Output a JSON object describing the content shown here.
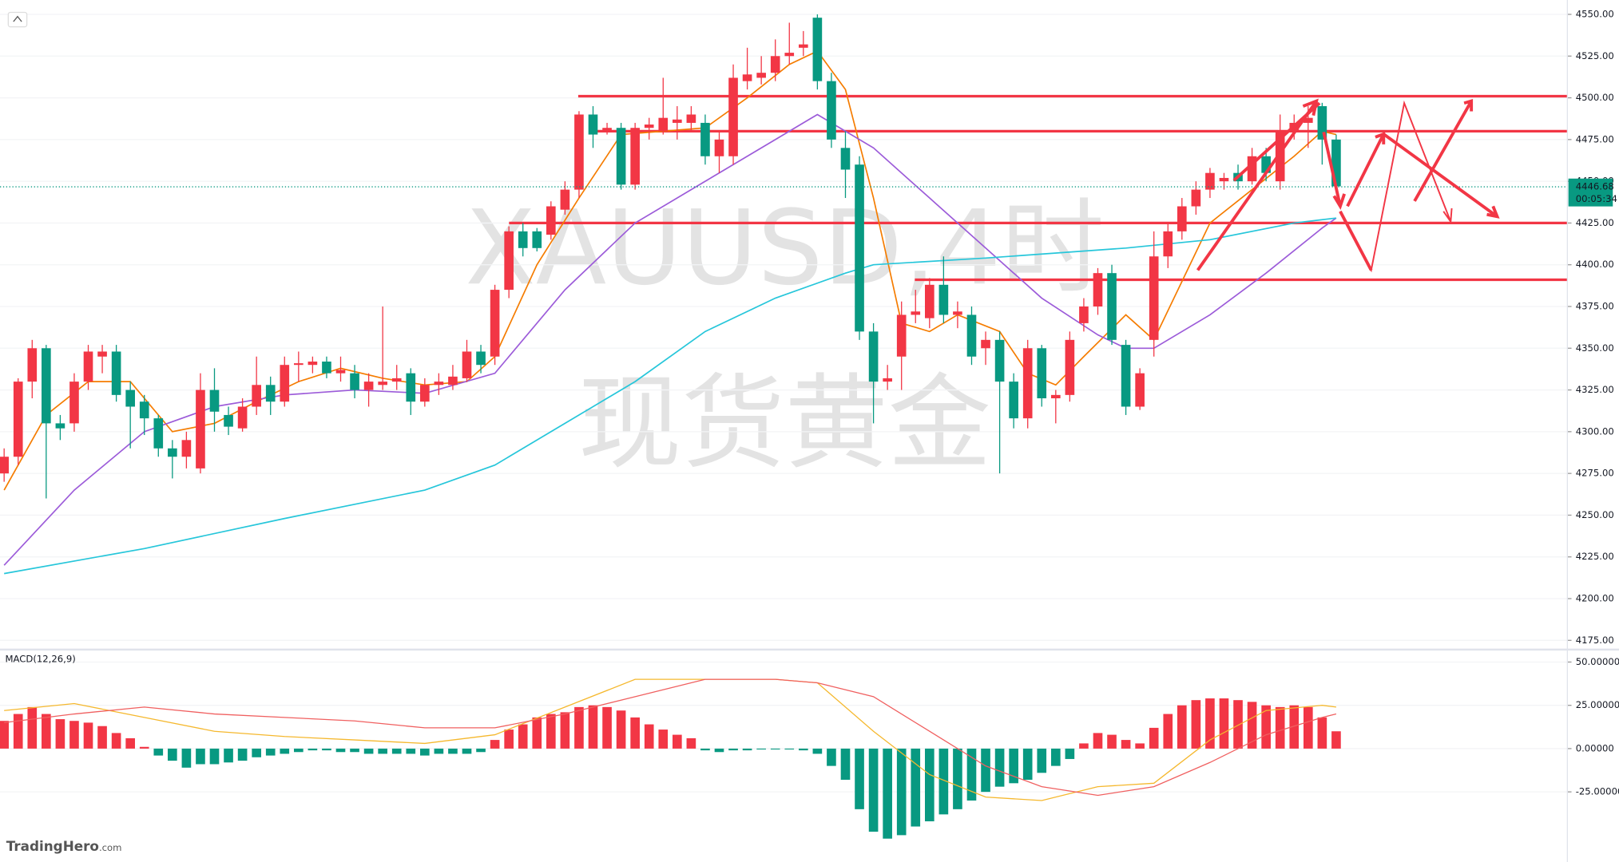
{
  "chart_data": [
    {
      "type": "candlestick",
      "title": "XAUUSD,4时",
      "subtitle": "现货黄金",
      "up_color": "#f23645",
      "down_color": "#089981",
      "ylim": [
        4170.7,
        4558.6
      ],
      "yticks": [
        {
          "value": 4175,
          "label": "4175.00"
        },
        {
          "value": 4200,
          "label": "4200.00"
        },
        {
          "value": 4225,
          "label": "4225.00"
        },
        {
          "value": 4250,
          "label": "4250.00"
        },
        {
          "value": 4275,
          "label": "4275.00"
        },
        {
          "value": 4300,
          "label": "4300.00"
        },
        {
          "value": 4325,
          "label": "4325.00"
        },
        {
          "value": 4350,
          "label": "4350.00"
        },
        {
          "value": 4375,
          "label": "4375.00"
        },
        {
          "value": 4400,
          "label": "4400.00"
        },
        {
          "value": 4425,
          "label": "4425.00"
        },
        {
          "value": 4450,
          "label": "4450.00"
        },
        {
          "value": 4475,
          "label": "4475.00"
        },
        {
          "value": 4500,
          "label": "4500.00"
        },
        {
          "value": 4525,
          "label": "4525.00"
        },
        {
          "value": 4550,
          "label": "4550.00"
        }
      ],
      "ohlc": [
        [
          4275,
          4290,
          4270,
          4285
        ],
        [
          4285,
          4332,
          4280,
          4330
        ],
        [
          4330,
          4355,
          4320,
          4350
        ],
        [
          4350,
          4352,
          4260,
          4305
        ],
        [
          4305,
          4310,
          4295,
          4302
        ],
        [
          4305,
          4335,
          4300,
          4330
        ],
        [
          4330,
          4352,
          4325,
          4348
        ],
        [
          4345,
          4352,
          4335,
          4348
        ],
        [
          4348,
          4352,
          4318,
          4322
        ],
        [
          4325,
          4330,
          4290,
          4315
        ],
        [
          4318,
          4322,
          4298,
          4308
        ],
        [
          4308,
          4310,
          4285,
          4290
        ],
        [
          4290,
          4295,
          4272,
          4285
        ],
        [
          4285,
          4300,
          4278,
          4295
        ],
        [
          4278,
          4335,
          4275,
          4325
        ],
        [
          4325,
          4338,
          4300,
          4312
        ],
        [
          4310,
          4315,
          4298,
          4303
        ],
        [
          4302,
          4320,
          4300,
          4315
        ],
        [
          4315,
          4345,
          4310,
          4328
        ],
        [
          4328,
          4333,
          4310,
          4318
        ],
        [
          4318,
          4345,
          4315,
          4340
        ],
        [
          4340,
          4348,
          4330,
          4341
        ],
        [
          4340,
          4345,
          4335,
          4342
        ],
        [
          4342,
          4345,
          4332,
          4335
        ],
        [
          4335,
          4345,
          4330,
          4337
        ],
        [
          4335,
          4340,
          4320,
          4325
        ],
        [
          4325,
          4335,
          4315,
          4330
        ],
        [
          4328,
          4375,
          4325,
          4330
        ],
        [
          4330,
          4340,
          4325,
          4332
        ],
        [
          4335,
          4338,
          4310,
          4318
        ],
        [
          4318,
          4332,
          4315,
          4328
        ],
        [
          4328,
          4335,
          4322,
          4330
        ],
        [
          4328,
          4340,
          4325,
          4333
        ],
        [
          4332,
          4355,
          4330,
          4348
        ],
        [
          4348,
          4352,
          4335,
          4340
        ],
        [
          4345,
          4388,
          4340,
          4385
        ],
        [
          4385,
          4423,
          4380,
          4420
        ],
        [
          4420,
          4425,
          4405,
          4410
        ],
        [
          4420,
          4422,
          4408,
          4410
        ],
        [
          4418,
          4438,
          4415,
          4435
        ],
        [
          4433,
          4450,
          4430,
          4445
        ],
        [
          4445,
          4492,
          4440,
          4490
        ],
        [
          4490,
          4495,
          4470,
          4478
        ],
        [
          4480,
          4485,
          4478,
          4482
        ],
        [
          4482,
          4485,
          4445,
          4448
        ],
        [
          4448,
          4485,
          4445,
          4482
        ],
        [
          4482,
          4488,
          4475,
          4484
        ],
        [
          4480,
          4512,
          4478,
          4488
        ],
        [
          4485,
          4495,
          4475,
          4487
        ],
        [
          4485,
          4495,
          4480,
          4490
        ],
        [
          4485,
          4490,
          4460,
          4465
        ],
        [
          4465,
          4480,
          4455,
          4475
        ],
        [
          4465,
          4520,
          4460,
          4512
        ],
        [
          4510,
          4530,
          4505,
          4514
        ],
        [
          4512,
          4525,
          4508,
          4515
        ],
        [
          4515,
          4535,
          4510,
          4525
        ],
        [
          4525,
          4545,
          4520,
          4527
        ],
        [
          4530,
          4540,
          4525,
          4532
        ],
        [
          4548,
          4550,
          4505,
          4510
        ],
        [
          4510,
          4515,
          4470,
          4475
        ],
        [
          4470,
          4480,
          4440,
          4457
        ],
        [
          4460,
          4465,
          4355,
          4360
        ],
        [
          4360,
          4365,
          4305,
          4330
        ],
        [
          4330,
          4340,
          4325,
          4332
        ],
        [
          4345,
          4378,
          4325,
          4370
        ],
        [
          4370,
          4385,
          4365,
          4372
        ],
        [
          4368,
          4392,
          4362,
          4388
        ],
        [
          4388,
          4405,
          4365,
          4370
        ],
        [
          4370,
          4378,
          4362,
          4372
        ],
        [
          4370,
          4375,
          4340,
          4345
        ],
        [
          4350,
          4360,
          4340,
          4355
        ],
        [
          4355,
          4360,
          4275,
          4330
        ],
        [
          4330,
          4335,
          4302,
          4308
        ],
        [
          4308,
          4355,
          4302,
          4350
        ],
        [
          4350,
          4352,
          4315,
          4320
        ],
        [
          4320,
          4325,
          4305,
          4322
        ],
        [
          4322,
          4360,
          4318,
          4355
        ],
        [
          4365,
          4380,
          4360,
          4375
        ],
        [
          4375,
          4398,
          4370,
          4395
        ],
        [
          4395,
          4400,
          4352,
          4355
        ],
        [
          4352,
          4355,
          4310,
          4315
        ],
        [
          4315,
          4338,
          4313,
          4335
        ],
        [
          4355,
          4420,
          4345,
          4405
        ],
        [
          4405,
          4425,
          4398,
          4420
        ],
        [
          4420,
          4440,
          4415,
          4435
        ],
        [
          4435,
          4450,
          4430,
          4445
        ],
        [
          4445,
          4458,
          4440,
          4455
        ],
        [
          4450,
          4455,
          4445,
          4452
        ],
        [
          4455,
          4460,
          4445,
          4450
        ],
        [
          4450,
          4470,
          4448,
          4465
        ],
        [
          4465,
          4470,
          4450,
          4455
        ],
        [
          4450,
          4490,
          4445,
          4480
        ],
        [
          4480,
          4490,
          4475,
          4485
        ],
        [
          4485,
          4495,
          4470,
          4488
        ],
        [
          4495,
          4497,
          4460,
          4475
        ],
        [
          4475,
          4478,
          4445,
          4447
        ]
      ],
      "series": [
        {
          "color": "#f57c00",
          "x": [
            0,
            3,
            6,
            9,
            12,
            15,
            18,
            21,
            24,
            27,
            30,
            33,
            35,
            38,
            41,
            44,
            47,
            50,
            53,
            56,
            58,
            60,
            62,
            64,
            66,
            68,
            71,
            73,
            75,
            77,
            80,
            82,
            84,
            86,
            89,
            92,
            94,
            95
          ],
          "values": [
            4265,
            4310,
            4330,
            4330,
            4300,
            4305,
            4318,
            4330,
            4338,
            4332,
            4328,
            4330,
            4345,
            4400,
            4440,
            4478,
            4480,
            4482,
            4500,
            4520,
            4528,
            4505,
            4440,
            4365,
            4360,
            4370,
            4360,
            4335,
            4328,
            4345,
            4370,
            4355,
            4390,
            4425,
            4445,
            4465,
            4480,
            4478
          ]
        },
        {
          "color": "#9c5bd9",
          "x": [
            0,
            5,
            10,
            15,
            20,
            25,
            30,
            35,
            40,
            45,
            50,
            55,
            58,
            62,
            66,
            70,
            74,
            78,
            80,
            82,
            86,
            90,
            94,
            95
          ],
          "values": [
            4220,
            4265,
            4300,
            4315,
            4322,
            4325,
            4323,
            4335,
            4385,
            4425,
            4450,
            4475,
            4490,
            4470,
            4440,
            4410,
            4380,
            4358,
            4350,
            4350,
            4370,
            4395,
            4422,
            4428
          ]
        },
        {
          "color": "#26c6da",
          "x": [
            0,
            10,
            20,
            30,
            35,
            40,
            45,
            50,
            55,
            60,
            62,
            70,
            80,
            86,
            92,
            95
          ],
          "values": [
            4215,
            4230,
            4248,
            4265,
            4280,
            4305,
            4330,
            4360,
            4380,
            4395,
            4400,
            4404,
            4410,
            4415,
            4425,
            4428
          ]
        }
      ],
      "levels": [
        4501,
        4480,
        4425,
        4391
      ],
      "level_color": "#f23645",
      "last_price": 4446.68,
      "last_price_label": "4446.68",
      "countdown": "00:05:34",
      "watermark_brand": "TradingHero",
      "watermark_domain": ".com"
    },
    {
      "type": "macd",
      "title": "MACD(12,26,9)",
      "ylim": [
        -65.5,
        56
      ],
      "yticks": [
        {
          "value": 50,
          "label": "50.00000"
        },
        {
          "value": 25,
          "label": "25.00000"
        },
        {
          "value": 0,
          "label": "0.00000"
        },
        {
          "value": -25,
          "label": "-25.00000"
        }
      ],
      "histogram": {
        "up_color": "#f23645",
        "down_color": "#089981",
        "values": [
          16,
          20,
          24,
          20,
          17,
          16,
          15,
          13,
          9,
          6,
          1,
          -4,
          -7,
          -11,
          -9,
          -9,
          -8,
          -7,
          -5,
          -4,
          -3,
          -2,
          -1,
          -1,
          -2,
          -2,
          -3,
          -3,
          -3,
          -3,
          -4,
          -3,
          -3,
          -3,
          -2,
          5,
          11,
          14,
          18,
          20,
          21,
          24,
          25,
          24,
          22,
          18,
          14,
          11,
          8,
          6,
          -1,
          -2,
          -1,
          -1,
          -0.5,
          -0.5,
          -0.5,
          -1,
          -3,
          -10,
          -18,
          -35,
          -48,
          -52,
          -50,
          -45,
          -42,
          -38,
          -35,
          -30,
          -25,
          -22,
          -20,
          -18,
          -14,
          -10,
          -6,
          3,
          9,
          8,
          5,
          3,
          12,
          20,
          25,
          28,
          29,
          29,
          28,
          27,
          25,
          24,
          25,
          24,
          18,
          10
        ]
      },
      "series": [
        {
          "color": "#f5b82e",
          "x": [
            0,
            5,
            10,
            15,
            20,
            25,
            30,
            35,
            40,
            45,
            50,
            55,
            58,
            62,
            66,
            70,
            74,
            78,
            82,
            86,
            90,
            94,
            95
          ],
          "values": [
            22,
            26,
            18,
            10,
            7,
            5,
            3,
            8,
            24,
            40,
            40,
            40,
            38,
            10,
            -15,
            -28,
            -30,
            -22,
            -20,
            5,
            22,
            25,
            24
          ]
        },
        {
          "color": "#f06060",
          "x": [
            0,
            5,
            10,
            15,
            20,
            25,
            30,
            35,
            40,
            45,
            50,
            55,
            58,
            62,
            66,
            70,
            74,
            78,
            82,
            86,
            90,
            94,
            95
          ],
          "values": [
            15,
            20,
            24,
            20,
            18,
            16,
            12,
            12,
            20,
            30,
            40,
            40,
            38,
            30,
            10,
            -10,
            -22,
            -27,
            -22,
            -8,
            8,
            18,
            20
          ]
        }
      ]
    }
  ]
}
